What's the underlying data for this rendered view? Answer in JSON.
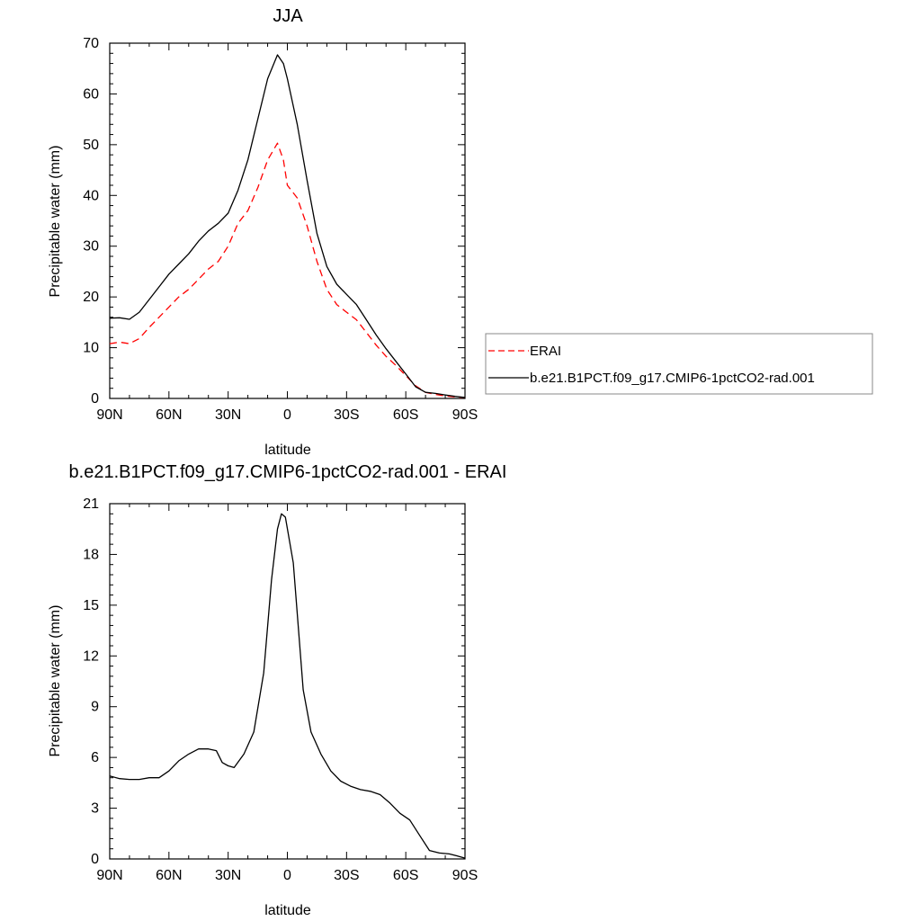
{
  "chart_data": [
    {
      "type": "line",
      "title": "JJA",
      "xlabel": "latitude",
      "ylabel": "Precipitable water (mm)",
      "xlim": [
        90,
        -90
      ],
      "ylim": [
        0,
        70
      ],
      "x_ticks": [
        90,
        60,
        30,
        0,
        -30,
        -60,
        -90
      ],
      "x_tick_labels": [
        "90N",
        "60N",
        "30N",
        "0",
        "30S",
        "60S",
        "90S"
      ],
      "y_ticks": [
        0,
        10,
        20,
        30,
        40,
        50,
        60,
        70
      ],
      "y_tick_labels": [
        "0",
        "10",
        "20",
        "30",
        "40",
        "50",
        "60",
        "70"
      ],
      "legend_position": "right",
      "series": [
        {
          "name": "ERAI",
          "color": "#ff0000",
          "style": "dashed",
          "x": [
            90,
            85,
            80,
            75,
            70,
            65,
            60,
            55,
            50,
            45,
            40,
            35,
            30,
            25,
            20,
            15,
            10,
            5,
            2,
            0,
            -5,
            -10,
            -15,
            -20,
            -25,
            -30,
            -35,
            -40,
            -45,
            -50,
            -55,
            -60,
            -65,
            -70,
            -75,
            -80,
            -85,
            -90
          ],
          "values": [
            10.8,
            11.1,
            10.8,
            11.8,
            14.0,
            16.0,
            18.0,
            20.0,
            21.5,
            23.5,
            25.5,
            27.0,
            30.0,
            34.5,
            37.0,
            41.5,
            47.0,
            50.3,
            47.0,
            42.0,
            39.5,
            34.0,
            27.0,
            21.5,
            18.5,
            17.0,
            15.5,
            13.0,
            10.5,
            8.3,
            6.5,
            4.5,
            2.5,
            1.2,
            0.8,
            0.5,
            0.3,
            0.2
          ]
        },
        {
          "name": "b.e21.B1PCT.f09_g17.CMIP6-1pctCO2-rad.001",
          "color": "#000000",
          "style": "solid",
          "x": [
            90,
            85,
            80,
            75,
            70,
            65,
            60,
            55,
            50,
            45,
            40,
            35,
            30,
            25,
            20,
            15,
            10,
            5,
            2,
            0,
            -5,
            -10,
            -15,
            -20,
            -25,
            -30,
            -35,
            -40,
            -45,
            -50,
            -55,
            -60,
            -65,
            -70,
            -75,
            -80,
            -85,
            -90
          ],
          "values": [
            15.8,
            15.9,
            15.6,
            17.0,
            19.5,
            22.0,
            24.5,
            26.5,
            28.5,
            31.0,
            33.0,
            34.5,
            36.5,
            41.0,
            47.0,
            55.0,
            63.0,
            67.7,
            66.0,
            63.0,
            54.0,
            43.0,
            32.5,
            26.0,
            22.5,
            20.5,
            18.5,
            15.5,
            12.5,
            9.8,
            7.3,
            4.8,
            2.3,
            1.2,
            1.0,
            0.7,
            0.4,
            0.2
          ]
        }
      ]
    },
    {
      "type": "line",
      "title": "b.e21.B1PCT.f09_g17.CMIP6-1pctCO2-rad.001 - ERAI",
      "xlabel": "latitude",
      "ylabel": "Precipitable water (mm)",
      "xlim": [
        90,
        -90
      ],
      "ylim": [
        0,
        21
      ],
      "x_ticks": [
        90,
        60,
        30,
        0,
        -30,
        -60,
        -90
      ],
      "x_tick_labels": [
        "90N",
        "60N",
        "30N",
        "0",
        "30S",
        "60S",
        "90S"
      ],
      "y_ticks": [
        0,
        3,
        6,
        9,
        12,
        15,
        18,
        21
      ],
      "y_tick_labels": [
        "0",
        "3",
        "6",
        "9",
        "12",
        "15",
        "18",
        "21"
      ],
      "series": [
        {
          "color": "#000000",
          "style": "solid",
          "x": [
            90,
            85,
            80,
            75,
            70,
            65,
            60,
            55,
            50,
            45,
            40,
            36,
            33,
            30,
            27,
            22,
            17,
            12,
            8,
            5,
            3,
            1,
            -3,
            -8,
            -12,
            -17,
            -22,
            -27,
            -32,
            -37,
            -42,
            -47,
            -52,
            -57,
            -62,
            -67,
            -72,
            -77,
            -82,
            -87,
            -90
          ],
          "values": [
            4.9,
            4.75,
            4.7,
            4.7,
            4.8,
            4.8,
            5.2,
            5.8,
            6.2,
            6.5,
            6.5,
            6.4,
            5.7,
            5.5,
            5.4,
            6.2,
            7.5,
            11.0,
            16.5,
            19.5,
            20.4,
            20.2,
            17.5,
            10.0,
            7.5,
            6.2,
            5.2,
            4.6,
            4.3,
            4.1,
            4.0,
            3.8,
            3.3,
            2.7,
            2.3,
            1.4,
            0.5,
            0.35,
            0.3,
            0.15,
            0.05
          ]
        }
      ]
    }
  ]
}
